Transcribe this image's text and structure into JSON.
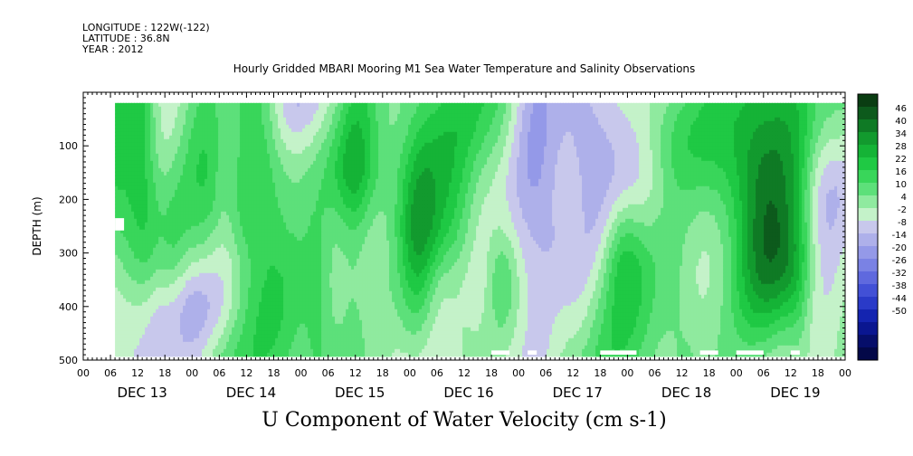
{
  "header": {
    "longitude": "LONGITUDE : 122W(-122)",
    "latitude": "LATITUDE : 36.8N",
    "year": "YEAR : 2012"
  },
  "chart_data": {
    "type": "heatmap",
    "title": "Hourly Gridded MBARI Mooring M1 Sea Water Temperature and Salinity Observations",
    "variable": "U Component of Water Velocity (cm s-1)",
    "ylabel": "DEPTH (m)",
    "xlabel": "",
    "ylim": [
      500,
      0
    ],
    "y_ticks": [
      100,
      200,
      300,
      400,
      500
    ],
    "x_range_hours": [
      0,
      168
    ],
    "x_hour_ticks": [
      "00",
      "06",
      "12",
      "18",
      "00",
      "06",
      "12",
      "18",
      "00",
      "06",
      "12",
      "18",
      "00",
      "06",
      "12",
      "18",
      "00",
      "06",
      "12",
      "18",
      "00",
      "06",
      "12",
      "18",
      "00",
      "06",
      "12",
      "18",
      "00"
    ],
    "x_day_labels": [
      "DEC 13",
      "DEC 14",
      "DEC 15",
      "DEC 16",
      "DEC 17",
      "DEC 18",
      "DEC 19"
    ],
    "data_extent": {
      "start_hour": 7,
      "end_hour": 168,
      "depth_top": 20,
      "depth_bottom": 490
    },
    "colorbar": {
      "levels": [
        48,
        46,
        40,
        34,
        28,
        22,
        16,
        10,
        4,
        -2,
        -8,
        -14,
        -20,
        -26,
        -32,
        -38,
        -44,
        -50
      ],
      "labels": [
        "46",
        "40",
        "34",
        "28",
        "22",
        "16",
        "10",
        "4",
        "-2",
        "-8",
        "-14",
        "-20",
        "-26",
        "-32",
        "-38",
        "-44",
        "-50"
      ],
      "colors": [
        "#0a3d12",
        "#0d5a1c",
        "#0f7a25",
        "#129a2e",
        "#15b336",
        "#1fc944",
        "#39d65a",
        "#5de07a",
        "#8fea9f",
        "#c4f2c9",
        "#c8c8ec",
        "#aeb0ea",
        "#9499e8",
        "#7a82e4",
        "#5f69de",
        "#4250d6",
        "#2a3ac8",
        "#1424b0",
        "#0a1690",
        "#060e6a",
        "#030848"
      ]
    },
    "gaps": [
      {
        "hour_start": 7,
        "hour_end": 9,
        "depth_start": 235,
        "depth_end": 258
      },
      {
        "hour_start": 90,
        "hour_end": 94,
        "depth_start": 482,
        "depth_end": 490
      },
      {
        "hour_start": 98,
        "hour_end": 100,
        "depth_start": 482,
        "depth_end": 490
      },
      {
        "hour_start": 114,
        "hour_end": 122,
        "depth_start": 482,
        "depth_end": 490
      },
      {
        "hour_start": 136,
        "hour_end": 140,
        "depth_start": 482,
        "depth_end": 490
      },
      {
        "hour_start": 144,
        "hour_end": 150,
        "depth_start": 482,
        "depth_end": 490
      },
      {
        "hour_start": 156,
        "hour_end": 158,
        "depth_start": 482,
        "depth_end": 490
      }
    ]
  }
}
